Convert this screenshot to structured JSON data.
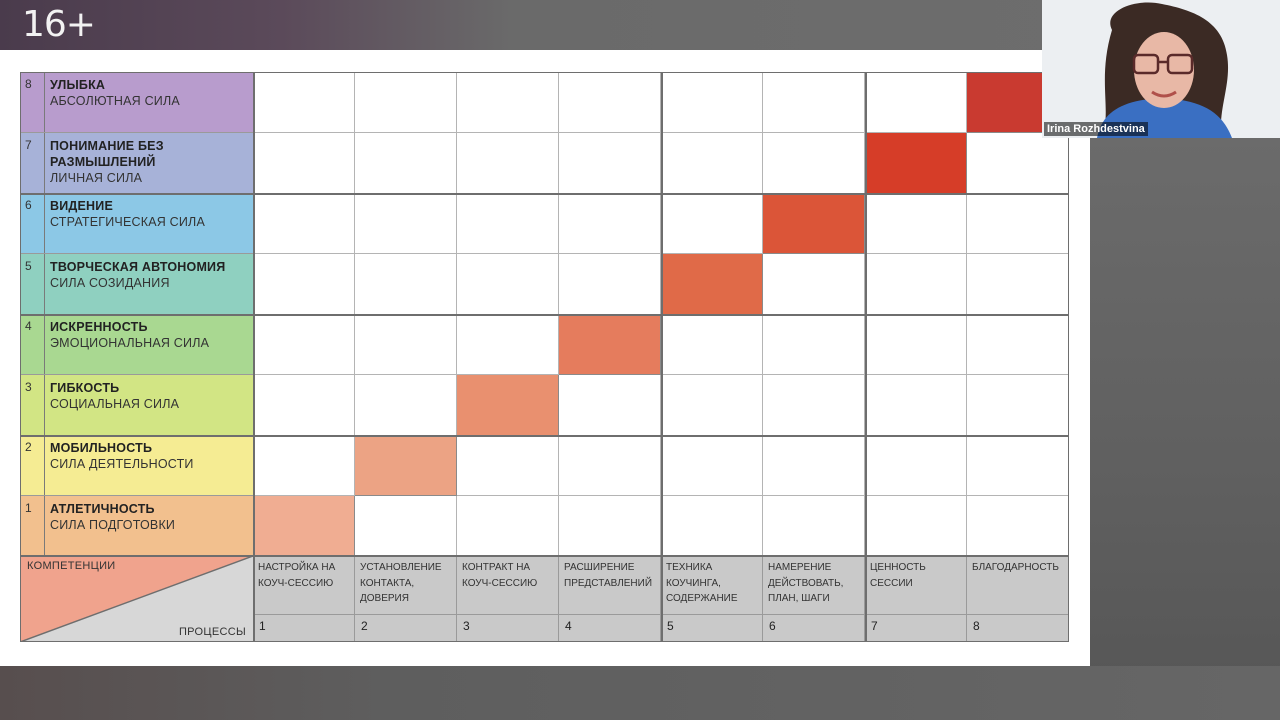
{
  "age_rating": "16+",
  "participant": {
    "name": "Irina Rozhdestvina"
  },
  "competencies": [
    {
      "level": "8",
      "title": "УЛЫБКА",
      "subtitle": "АБСОЛЮТНАЯ СИЛА",
      "color": "#b89ccd"
    },
    {
      "level": "7",
      "title": "ПОНИМАНИЕ БЕЗ РАЗМЫШЛЕНИЙ",
      "subtitle": "ЛИЧНАЯ СИЛА",
      "color": "#a7b2d8"
    },
    {
      "level": "6",
      "title": "ВИДЕНИЕ",
      "subtitle": "СТРАТЕГИЧЕСКАЯ СИЛА",
      "color": "#8cc8e6"
    },
    {
      "level": "5",
      "title": "ТВОРЧЕСКАЯ АВТОНОМИЯ",
      "subtitle": "СИЛА СОЗИДАНИЯ",
      "color": "#8fd0c0"
    },
    {
      "level": "4",
      "title": "ИСКРЕННОСТЬ",
      "subtitle": "ЭМОЦИОНАЛЬНАЯ СИЛА",
      "color": "#a9d891"
    },
    {
      "level": "3",
      "title": "ГИБКОСТЬ",
      "subtitle": "СОЦИАЛЬНАЯ СИЛА",
      "color": "#d2e584"
    },
    {
      "level": "2",
      "title": "МОБИЛЬНОСТЬ",
      "subtitle": "СИЛА ДЕЯТЕЛЬНОСТИ",
      "color": "#f5ec93"
    },
    {
      "level": "1",
      "title": "АТЛЕТИЧНОСТЬ",
      "subtitle": "СИЛА ПОДГОТОВКИ",
      "color": "#f2c08e"
    }
  ],
  "corner": {
    "top_label": "КОМПЕТЕНЦИИ",
    "bottom_label": "ПРОЦЕССЫ",
    "top_color": "#f0a38d",
    "bottom_color": "#d7d7d7"
  },
  "processes": [
    {
      "num": "1",
      "label": "НАСТРОЙКА НА КОУЧ-СЕССИЮ"
    },
    {
      "num": "2",
      "label": "УСТАНОВЛЕНИЕ КОНТАКТА, ДОВЕРИЯ"
    },
    {
      "num": "3",
      "label": "КОНТРАКТ НА КОУЧ-СЕССИЮ"
    },
    {
      "num": "4",
      "label": "РАСШИРЕНИЕ ПРЕДСТАВЛЕНИЙ"
    },
    {
      "num": "5",
      "label": "ТЕХНИКА КОУЧИНГА, СОДЕРЖАНИЕ"
    },
    {
      "num": "6",
      "label": "НАМЕРЕНИЕ ДЕЙСТВОВАТЬ, ПЛАН, ШАГИ"
    },
    {
      "num": "7",
      "label": "ЦЕННОСТЬ СЕССИИ"
    },
    {
      "num": "8",
      "label": "БЛАГОДАРНОСТЬ"
    }
  ],
  "highlight_colors": [
    "#f0ad92",
    "#eca384",
    "#e9906f",
    "#e57c5d",
    "#e06a48",
    "#db5538",
    "#d63d28",
    "#c93a30"
  ]
}
